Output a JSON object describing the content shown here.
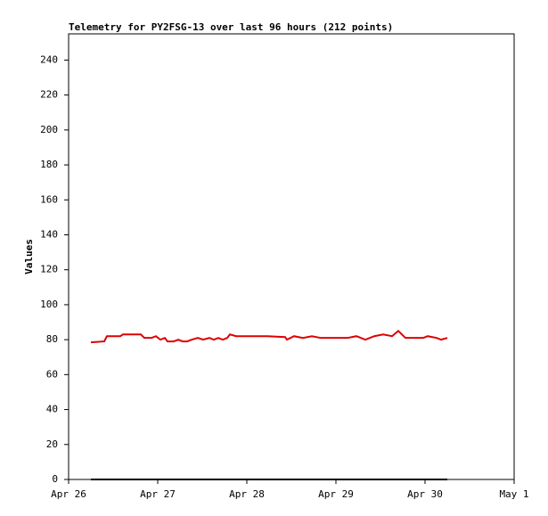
{
  "chart_data": {
    "type": "line",
    "title": "Telemetry for PY2FSG-13 over last 96 hours (212 points)",
    "y_label": "Values",
    "x": [
      0.25,
      0.4,
      0.43,
      0.58,
      0.61,
      0.81,
      0.85,
      0.93,
      0.98,
      1.03,
      1.08,
      1.11,
      1.18,
      1.23,
      1.28,
      1.33,
      1.38,
      1.45,
      1.51,
      1.58,
      1.63,
      1.68,
      1.73,
      1.78,
      1.81,
      1.88,
      1.98,
      2.23,
      2.43,
      2.45,
      2.53,
      2.63,
      2.73,
      2.83,
      2.93,
      3.13,
      3.23,
      3.33,
      3.43,
      3.53,
      3.63,
      3.7,
      3.78,
      3.98,
      4.03,
      4.13,
      4.18,
      4.25
    ],
    "series": [
      {
        "color": "#dd0000",
        "values": [
          78.5,
          79,
          82,
          82,
          83,
          83,
          81,
          81,
          82,
          80,
          81,
          79,
          79,
          80,
          79,
          79,
          80,
          81,
          80,
          81,
          80,
          81,
          80,
          81,
          83,
          82,
          82,
          82,
          81.5,
          80,
          82,
          81,
          82,
          81,
          81,
          81,
          82,
          80,
          82,
          83,
          82,
          85,
          81,
          81,
          82,
          81,
          80,
          81
        ]
      },
      {
        "color": "#000000",
        "values": [
          0,
          0,
          0,
          0,
          0,
          0,
          0,
          0,
          0,
          0,
          0,
          0,
          0,
          0,
          0,
          0,
          0,
          0,
          0,
          0,
          0,
          0,
          0,
          0,
          0,
          0,
          0,
          0,
          0,
          0,
          0,
          0,
          0,
          0,
          0,
          0,
          0,
          0,
          0,
          0,
          0,
          0,
          0,
          0,
          0,
          0,
          0,
          0
        ]
      }
    ],
    "xlim": [
      0,
      5
    ],
    "xticks": [
      {
        "value": 0,
        "label": "Apr 26"
      },
      {
        "value": 1,
        "label": "Apr 27"
      },
      {
        "value": 2,
        "label": "Apr 28"
      },
      {
        "value": 3,
        "label": "Apr 29"
      },
      {
        "value": 4,
        "label": "Apr 30"
      },
      {
        "value": 5,
        "label": "May 1"
      }
    ],
    "ylim": [
      0,
      255
    ],
    "yticks": [
      0,
      20,
      40,
      60,
      80,
      100,
      120,
      140,
      160,
      180,
      200,
      220,
      240
    ]
  }
}
